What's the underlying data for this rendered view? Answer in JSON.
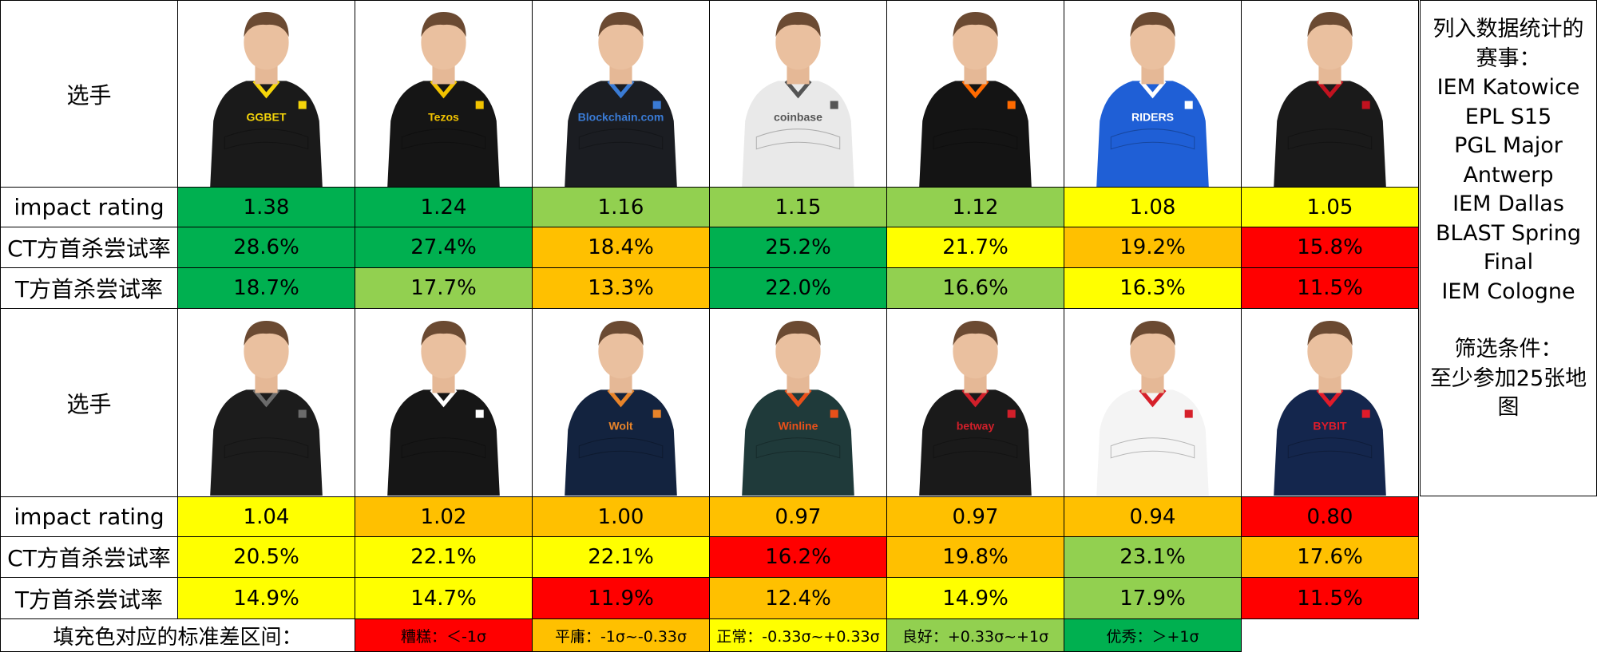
{
  "row_labels": {
    "player": "选手",
    "impact": "impact rating",
    "ct": "CT方首杀尝试率",
    "t": "T方首杀尝试率"
  },
  "colors": {
    "dark_green": "#00b050",
    "light_green": "#92d050",
    "yellow": "#ffff00",
    "orange": "#ffc000",
    "red": "#ff0000"
  },
  "group1": {
    "players": [
      {
        "jersey": "#1a1a1a",
        "accent": "#f5d50a",
        "sponsor": "GGBET"
      },
      {
        "jersey": "#151515",
        "accent": "#f2c300",
        "sponsor": "Tezos"
      },
      {
        "jersey": "#1b1d22",
        "accent": "#3a7bd5",
        "sponsor": "Blockchain.com"
      },
      {
        "jersey": "#e9e9e9",
        "accent": "#555555",
        "sponsor": "coinbase"
      },
      {
        "jersey": "#141414",
        "accent": "#ff6a00",
        "sponsor": ""
      },
      {
        "jersey": "#1f5fd6",
        "accent": "#ffffff",
        "sponsor": "RIDERS"
      },
      {
        "jersey": "#1a1a1a",
        "accent": "#c1121f",
        "sponsor": ""
      }
    ],
    "impact": [
      {
        "v": "1.38",
        "c": "dark_green"
      },
      {
        "v": "1.24",
        "c": "dark_green"
      },
      {
        "v": "1.16",
        "c": "light_green"
      },
      {
        "v": "1.15",
        "c": "light_green"
      },
      {
        "v": "1.12",
        "c": "light_green"
      },
      {
        "v": "1.08",
        "c": "yellow"
      },
      {
        "v": "1.05",
        "c": "yellow"
      }
    ],
    "ct": [
      {
        "v": "28.6%",
        "c": "dark_green"
      },
      {
        "v": "27.4%",
        "c": "dark_green"
      },
      {
        "v": "18.4%",
        "c": "orange"
      },
      {
        "v": "25.2%",
        "c": "dark_green"
      },
      {
        "v": "21.7%",
        "c": "yellow"
      },
      {
        "v": "19.2%",
        "c": "orange"
      },
      {
        "v": "15.8%",
        "c": "red"
      }
    ],
    "t": [
      {
        "v": "18.7%",
        "c": "dark_green"
      },
      {
        "v": "17.7%",
        "c": "light_green"
      },
      {
        "v": "13.3%",
        "c": "orange"
      },
      {
        "v": "22.0%",
        "c": "dark_green"
      },
      {
        "v": "16.6%",
        "c": "light_green"
      },
      {
        "v": "16.3%",
        "c": "yellow"
      },
      {
        "v": "11.5%",
        "c": "red"
      }
    ]
  },
  "group2": {
    "players": [
      {
        "jersey": "#1c1c1c",
        "accent": "#6b6b6b",
        "sponsor": ""
      },
      {
        "jersey": "#161616",
        "accent": "#ffffff",
        "sponsor": ""
      },
      {
        "jersey": "#13233f",
        "accent": "#e8842a",
        "sponsor": "Wolt"
      },
      {
        "jersey": "#1f3a3a",
        "accent": "#e8501a",
        "sponsor": "Winline"
      },
      {
        "jersey": "#1a1a1a",
        "accent": "#d11f2a",
        "sponsor": "betway"
      },
      {
        "jersey": "#f4f4f4",
        "accent": "#d6202a",
        "sponsor": ""
      },
      {
        "jersey": "#14264d",
        "accent": "#e01b2a",
        "sponsor": "BYBIT"
      }
    ],
    "impact": [
      {
        "v": "1.04",
        "c": "yellow"
      },
      {
        "v": "1.02",
        "c": "orange"
      },
      {
        "v": "1.00",
        "c": "orange"
      },
      {
        "v": "0.97",
        "c": "orange"
      },
      {
        "v": "0.97",
        "c": "orange"
      },
      {
        "v": "0.94",
        "c": "orange"
      },
      {
        "v": "0.80",
        "c": "red"
      }
    ],
    "ct": [
      {
        "v": "20.5%",
        "c": "yellow"
      },
      {
        "v": "22.1%",
        "c": "yellow"
      },
      {
        "v": "22.1%",
        "c": "yellow"
      },
      {
        "v": "16.2%",
        "c": "red"
      },
      {
        "v": "19.8%",
        "c": "orange"
      },
      {
        "v": "23.1%",
        "c": "light_green"
      },
      {
        "v": "17.6%",
        "c": "orange"
      }
    ],
    "t": [
      {
        "v": "14.9%",
        "c": "yellow"
      },
      {
        "v": "14.7%",
        "c": "yellow"
      },
      {
        "v": "11.9%",
        "c": "red"
      },
      {
        "v": "12.4%",
        "c": "orange"
      },
      {
        "v": "14.9%",
        "c": "yellow"
      },
      {
        "v": "17.9%",
        "c": "light_green"
      },
      {
        "v": "11.5%",
        "c": "red"
      }
    ]
  },
  "legend": {
    "title": "填充色对应的标准差区间：",
    "items": [
      {
        "text": "糟糕：＜-1σ",
        "c": "red"
      },
      {
        "text": "平庸：-1σ~-0.33σ",
        "c": "orange"
      },
      {
        "text": "正常：-0.33σ~+0.33σ",
        "c": "yellow"
      },
      {
        "text": "良好：+0.33σ~+1σ",
        "c": "light_green"
      },
      {
        "text": "优秀：＞+1σ",
        "c": "dark_green"
      }
    ]
  },
  "side": {
    "events_title_1": "列入数据统计的",
    "events_title_2": "赛事：",
    "events": [
      "IEM Katowice",
      "EPL S15",
      "PGL Major",
      "Antwerp",
      "IEM Dallas",
      "BLAST Spring",
      "Final",
      "IEM Cologne"
    ],
    "filter_title": "筛选条件：",
    "filter_1": "至少参加25张地",
    "filter_2": "图"
  }
}
